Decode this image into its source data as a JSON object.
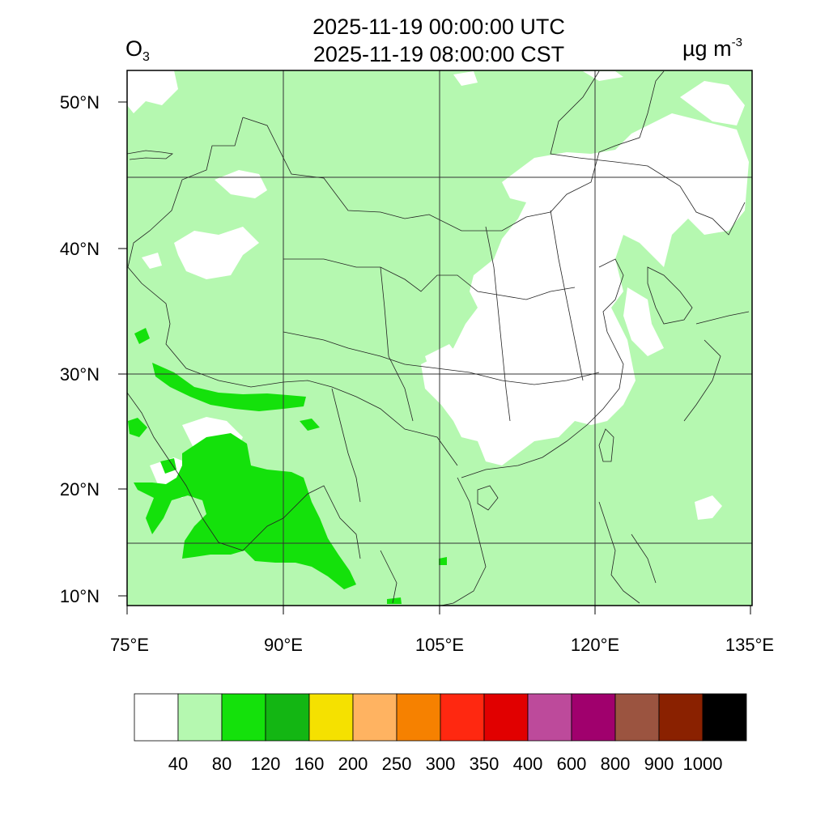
{
  "title": {
    "line1": "2025-11-19 00:00:00 UTC",
    "line2": "2025-11-19 08:00:00 CST",
    "variable": "O",
    "variable_sub": "3",
    "unit": "µg m",
    "unit_sup": "-3"
  },
  "axes": {
    "lat_labels": [
      "10°N",
      "20°N",
      "30°N",
      "40°N",
      "50°N"
    ],
    "lon_labels": [
      "75°E",
      "90°E",
      "105°E",
      "120°E",
      "135°E"
    ]
  },
  "colorbar": {
    "colors": [
      "#ffffff",
      "#b5f8b0",
      "#14e10b",
      "#13b613",
      "#f5e100",
      "#ffb361",
      "#f68100",
      "#ff2810",
      "#e10000",
      "#bd4a9b",
      "#a0006d",
      "#9b5440",
      "#8a2100",
      "#000000"
    ],
    "labels": [
      "40",
      "80",
      "120",
      "160",
      "200",
      "250",
      "300",
      "350",
      "400",
      "600",
      "800",
      "900",
      "1000"
    ]
  },
  "field": {
    "dominant_level": "40-80",
    "secondary_level": "80-120"
  }
}
